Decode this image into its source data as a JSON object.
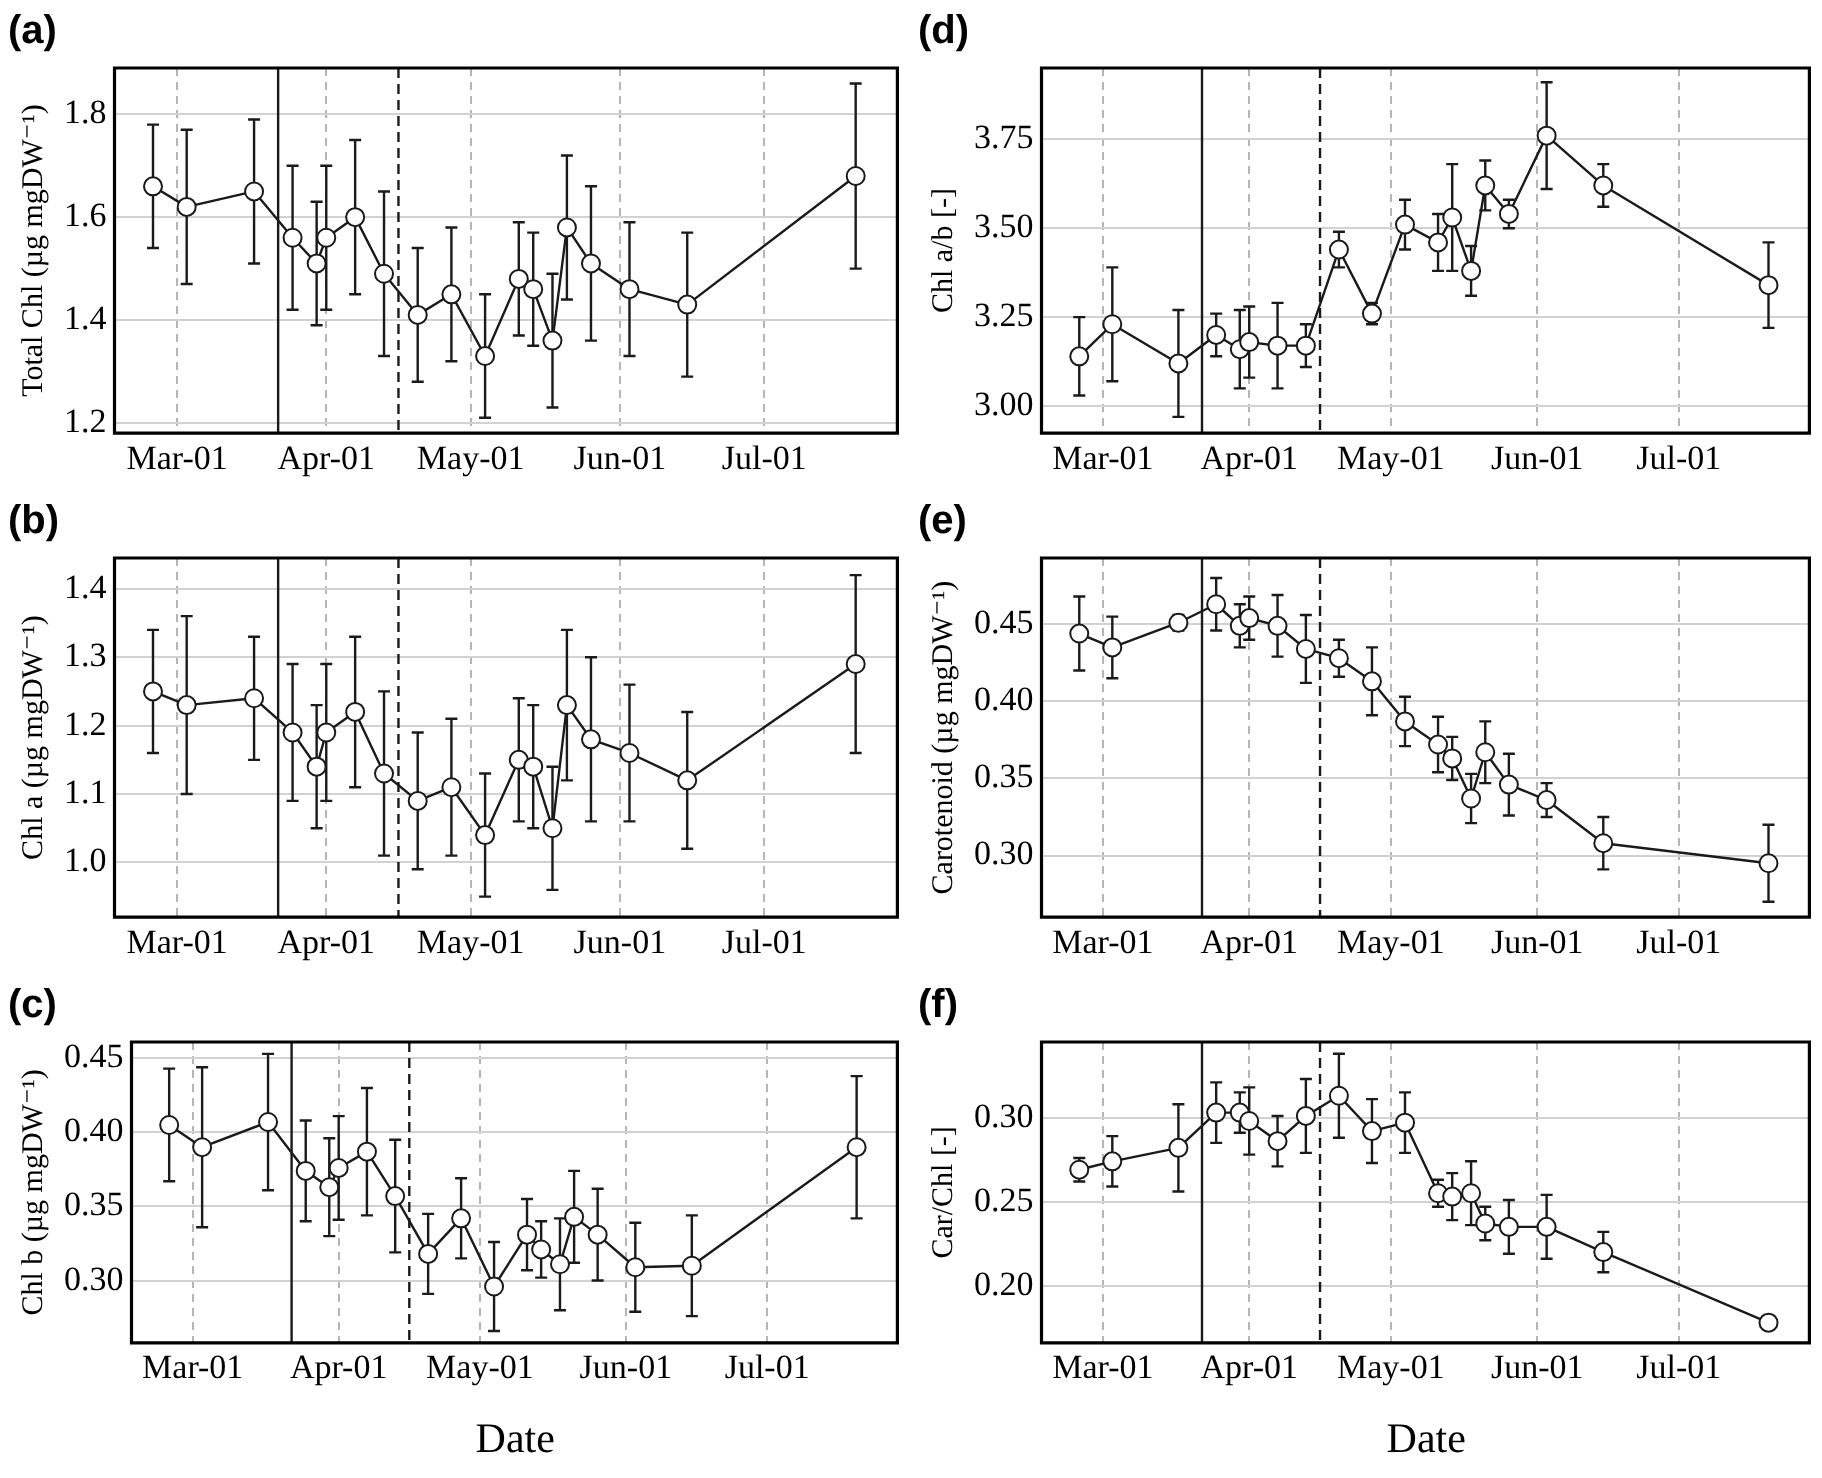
{
  "chart_data": [
    {
      "type": "line",
      "title": "(a)",
      "ylabel": "Total Chl (µg mgDW⁻¹)",
      "color": "#1a1a1a",
      "marker": "circle",
      "grid": true,
      "x": [
        "--02-24",
        "--03-03",
        "--03-17",
        "--03-25",
        "--03-30",
        "--04-01",
        "--04-07",
        "--04-13",
        "--04-20",
        "--04-27",
        "--05-04",
        "--05-11",
        "--05-14",
        "--05-18",
        "--05-21",
        "--05-26",
        "--06-03",
        "--06-15",
        "--07-20"
      ],
      "values": [
        1.66,
        1.62,
        1.65,
        1.56,
        1.51,
        1.56,
        1.6,
        1.49,
        1.41,
        1.45,
        1.33,
        1.48,
        1.46,
        1.36,
        1.58,
        1.51,
        1.46,
        1.43,
        1.68
      ],
      "errors": [
        0.12,
        0.15,
        0.14,
        0.14,
        0.12,
        0.14,
        0.15,
        0.16,
        0.13,
        0.13,
        0.12,
        0.11,
        0.11,
        0.13,
        0.14,
        0.15,
        0.13,
        0.14,
        0.18
      ],
      "xlim": [
        "--02-16",
        "--07-29"
      ],
      "xticks": [
        {
          "value": "--03-01",
          "label": "Mar-01"
        },
        {
          "value": "--04-01",
          "label": "Apr-01"
        },
        {
          "value": "--05-01",
          "label": "May-01"
        },
        {
          "value": "--06-01",
          "label": "Jun-01"
        },
        {
          "value": "--07-01",
          "label": "Jul-01"
        }
      ],
      "ylim": [
        1.18,
        1.89
      ],
      "yticks": [
        1.2,
        1.4,
        1.6,
        1.8
      ],
      "ref_lines": [
        {
          "axis": "x",
          "value": "--03-22",
          "color": "#1a1a1a",
          "line_style": "solid"
        },
        {
          "axis": "x",
          "value": "--04-16",
          "color": "#1a1a1a",
          "line_style": "dashed"
        }
      ]
    },
    {
      "type": "line",
      "title": "(b)",
      "ylabel": "Chl a (µg mgDW⁻¹)",
      "color": "#1a1a1a",
      "marker": "circle",
      "grid": true,
      "x": [
        "--02-24",
        "--03-03",
        "--03-17",
        "--03-25",
        "--03-30",
        "--04-01",
        "--04-07",
        "--04-13",
        "--04-20",
        "--04-27",
        "--05-04",
        "--05-11",
        "--05-14",
        "--05-18",
        "--05-21",
        "--05-26",
        "--06-03",
        "--06-15",
        "--07-20"
      ],
      "values": [
        1.25,
        1.23,
        1.24,
        1.19,
        1.14,
        1.19,
        1.22,
        1.13,
        1.09,
        1.11,
        1.04,
        1.15,
        1.14,
        1.05,
        1.23,
        1.18,
        1.16,
        1.12,
        1.29
      ],
      "errors": [
        0.09,
        0.13,
        0.09,
        0.1,
        0.09,
        0.1,
        0.11,
        0.12,
        0.1,
        0.1,
        0.09,
        0.09,
        0.09,
        0.09,
        0.11,
        0.12,
        0.1,
        0.1,
        0.13
      ],
      "xlim": [
        "--02-16",
        "--07-29"
      ],
      "xticks": [
        {
          "value": "--03-01",
          "label": "Mar-01"
        },
        {
          "value": "--04-01",
          "label": "Apr-01"
        },
        {
          "value": "--05-01",
          "label": "May-01"
        },
        {
          "value": "--06-01",
          "label": "Jun-01"
        },
        {
          "value": "--07-01",
          "label": "Jul-01"
        }
      ],
      "ylim": [
        0.92,
        1.445
      ],
      "yticks": [
        {
          "value": 1,
          "label": "1.0"
        },
        1.1,
        1.2,
        1.3,
        1.4
      ],
      "ref_lines": [
        {
          "axis": "x",
          "value": "--03-22",
          "color": "#1a1a1a",
          "line_style": "solid"
        },
        {
          "axis": "x",
          "value": "--04-16",
          "color": "#1a1a1a",
          "line_style": "dashed"
        }
      ]
    },
    {
      "type": "line",
      "title": "(c)",
      "xlabel": "Date",
      "ylabel": "Chl b (µg mgDW⁻¹)",
      "color": "#1a1a1a",
      "marker": "circle",
      "grid": true,
      "x": [
        "--02-24",
        "--03-03",
        "--03-17",
        "--03-25",
        "--03-30",
        "--04-01",
        "--04-07",
        "--04-13",
        "--04-20",
        "--04-27",
        "--05-04",
        "--05-11",
        "--05-14",
        "--05-18",
        "--05-21",
        "--05-26",
        "--06-03",
        "--06-15",
        "--07-20"
      ],
      "values": [
        0.405,
        0.39,
        0.407,
        0.374,
        0.363,
        0.376,
        0.387,
        0.357,
        0.318,
        0.342,
        0.296,
        0.331,
        0.321,
        0.311,
        0.343,
        0.331,
        0.309,
        0.31,
        0.39
      ],
      "errors": [
        0.038,
        0.054,
        0.046,
        0.034,
        0.033,
        0.035,
        0.043,
        0.038,
        0.027,
        0.027,
        0.03,
        0.024,
        0.019,
        0.031,
        0.031,
        0.031,
        0.03,
        0.034,
        0.048
      ],
      "xlim": [
        "--02-16",
        "--07-29"
      ],
      "xticks": [
        {
          "value": "--03-01",
          "label": "Mar-01"
        },
        {
          "value": "--04-01",
          "label": "Apr-01"
        },
        {
          "value": "--05-01",
          "label": "May-01"
        },
        {
          "value": "--06-01",
          "label": "Jun-01"
        },
        {
          "value": "--07-01",
          "label": "Jul-01"
        }
      ],
      "ylim": [
        0.258,
        0.461
      ],
      "yticks": [
        {
          "value": 0.3,
          "label": "0.30"
        },
        0.35,
        {
          "value": 0.4,
          "label": "0.40"
        },
        0.45
      ],
      "ref_lines": [
        {
          "axis": "x",
          "value": "--03-22",
          "color": "#1a1a1a",
          "line_style": "solid"
        },
        {
          "axis": "x",
          "value": "--04-16",
          "color": "#1a1a1a",
          "line_style": "dashed"
        }
      ]
    },
    {
      "type": "line",
      "title": "(d)",
      "ylabel": "Chl a/b [-]",
      "color": "#1a1a1a",
      "marker": "circle",
      "grid": true,
      "x": [
        "--02-24",
        "--03-03",
        "--03-17",
        "--03-25",
        "--03-30",
        "--04-01",
        "--04-07",
        "--04-13",
        "--04-20",
        "--04-27",
        "--05-04",
        "--05-11",
        "--05-14",
        "--05-18",
        "--05-21",
        "--05-26",
        "--06-03",
        "--06-15",
        "--07-20"
      ],
      "values": [
        3.14,
        3.23,
        3.12,
        3.2,
        3.16,
        3.18,
        3.17,
        3.17,
        3.44,
        3.26,
        3.51,
        3.46,
        3.53,
        3.38,
        3.62,
        3.54,
        3.76,
        3.62,
        3.34
      ],
      "errors": [
        0.11,
        0.16,
        0.15,
        0.06,
        0.11,
        0.1,
        0.12,
        0.06,
        0.05,
        0.03,
        0.07,
        0.08,
        0.15,
        0.07,
        0.07,
        0.04,
        0.15,
        0.06,
        0.12
      ],
      "xlim": [
        "--02-16",
        "--07-29"
      ],
      "xticks": [
        {
          "value": "--03-01",
          "label": "Mar-01"
        },
        {
          "value": "--04-01",
          "label": "Apr-01"
        },
        {
          "value": "--05-01",
          "label": "May-01"
        },
        {
          "value": "--06-01",
          "label": "Jun-01"
        },
        {
          "value": "--07-01",
          "label": "Jul-01"
        }
      ],
      "ylim": [
        2.924,
        3.95
      ],
      "yticks": [
        {
          "value": 3,
          "label": "3.00"
        },
        3.25,
        {
          "value": 3.5,
          "label": "3.50"
        },
        3.75
      ],
      "ref_lines": [
        {
          "axis": "x",
          "value": "--03-22",
          "color": "#1a1a1a",
          "line_style": "solid"
        },
        {
          "axis": "x",
          "value": "--04-16",
          "color": "#1a1a1a",
          "line_style": "dashed"
        }
      ]
    },
    {
      "type": "line",
      "title": "(e)",
      "ylabel": "Carotenoid (µg mgDW⁻¹)",
      "color": "#1a1a1a",
      "marker": "circle",
      "grid": true,
      "x": [
        "--02-24",
        "--03-03",
        "--03-17",
        "--03-25",
        "--03-30",
        "--04-01",
        "--04-07",
        "--04-13",
        "--04-20",
        "--04-27",
        "--05-04",
        "--05-11",
        "--05-14",
        "--05-18",
        "--05-21",
        "--05-26",
        "--06-03",
        "--06-15",
        "--07-20"
      ],
      "values": [
        0.444,
        0.435,
        0.451,
        0.463,
        0.449,
        0.454,
        0.449,
        0.434,
        0.428,
        0.413,
        0.387,
        0.372,
        0.363,
        0.337,
        0.367,
        0.346,
        0.336,
        0.308,
        0.295
      ],
      "errors": [
        0.024,
        0.02,
        0.005,
        0.017,
        0.014,
        0.014,
        0.02,
        0.022,
        0.012,
        0.022,
        0.016,
        0.018,
        0.014,
        0.016,
        0.02,
        0.02,
        0.011,
        0.017,
        0.025
      ],
      "xlim": [
        "--02-16",
        "--07-29"
      ],
      "xticks": [
        {
          "value": "--03-01",
          "label": "Mar-01"
        },
        {
          "value": "--04-01",
          "label": "Apr-01"
        },
        {
          "value": "--05-01",
          "label": "May-01"
        },
        {
          "value": "--06-01",
          "label": "Jun-01"
        },
        {
          "value": "--07-01",
          "label": "Jul-01"
        }
      ],
      "ylim": [
        0.26,
        0.493
      ],
      "yticks": [
        {
          "value": 0.3,
          "label": "0.30"
        },
        0.35,
        {
          "value": 0.4,
          "label": "0.40"
        },
        0.45
      ],
      "ref_lines": [
        {
          "axis": "x",
          "value": "--03-22",
          "color": "#1a1a1a",
          "line_style": "solid"
        },
        {
          "axis": "x",
          "value": "--04-16",
          "color": "#1a1a1a",
          "line_style": "dashed"
        }
      ]
    },
    {
      "type": "line",
      "title": "(f)",
      "xlabel": "Date",
      "ylabel": "Car/Chl [-]",
      "color": "#1a1a1a",
      "marker": "circle",
      "grid": true,
      "x": [
        "--02-24",
        "--03-03",
        "--03-17",
        "--03-25",
        "--03-30",
        "--04-01",
        "--04-07",
        "--04-13",
        "--04-20",
        "--04-27",
        "--05-04",
        "--05-11",
        "--05-14",
        "--05-18",
        "--05-21",
        "--05-26",
        "--06-03",
        "--06-15",
        "--07-20"
      ],
      "values": [
        0.269,
        0.274,
        0.282,
        0.303,
        0.303,
        0.298,
        0.286,
        0.301,
        0.313,
        0.292,
        0.297,
        0.255,
        0.253,
        0.255,
        0.237,
        0.235,
        0.235,
        0.22,
        0.178
      ],
      "errors": [
        0.007,
        0.015,
        0.026,
        0.018,
        0.012,
        0.02,
        0.015,
        0.022,
        0.025,
        0.019,
        0.018,
        0.008,
        0.014,
        0.019,
        0.01,
        0.016,
        0.019,
        0.012,
        0.004
      ],
      "xlim": [
        "--02-16",
        "--07-29"
      ],
      "xticks": [
        {
          "value": "--03-01",
          "label": "Mar-01"
        },
        {
          "value": "--04-01",
          "label": "Apr-01"
        },
        {
          "value": "--05-01",
          "label": "May-01"
        },
        {
          "value": "--06-01",
          "label": "Jun-01"
        },
        {
          "value": "--07-01",
          "label": "Jul-01"
        }
      ],
      "ylim": [
        0.166,
        0.345
      ],
      "yticks": [
        {
          "value": 0.2,
          "label": "0.20"
        },
        0.25,
        {
          "value": 0.3,
          "label": "0.30"
        }
      ],
      "ref_lines": [
        {
          "axis": "x",
          "value": "--03-22",
          "color": "#1a1a1a",
          "line_style": "solid"
        },
        {
          "axis": "x",
          "value": "--04-16",
          "color": "#1a1a1a",
          "line_style": "dashed"
        }
      ]
    }
  ]
}
